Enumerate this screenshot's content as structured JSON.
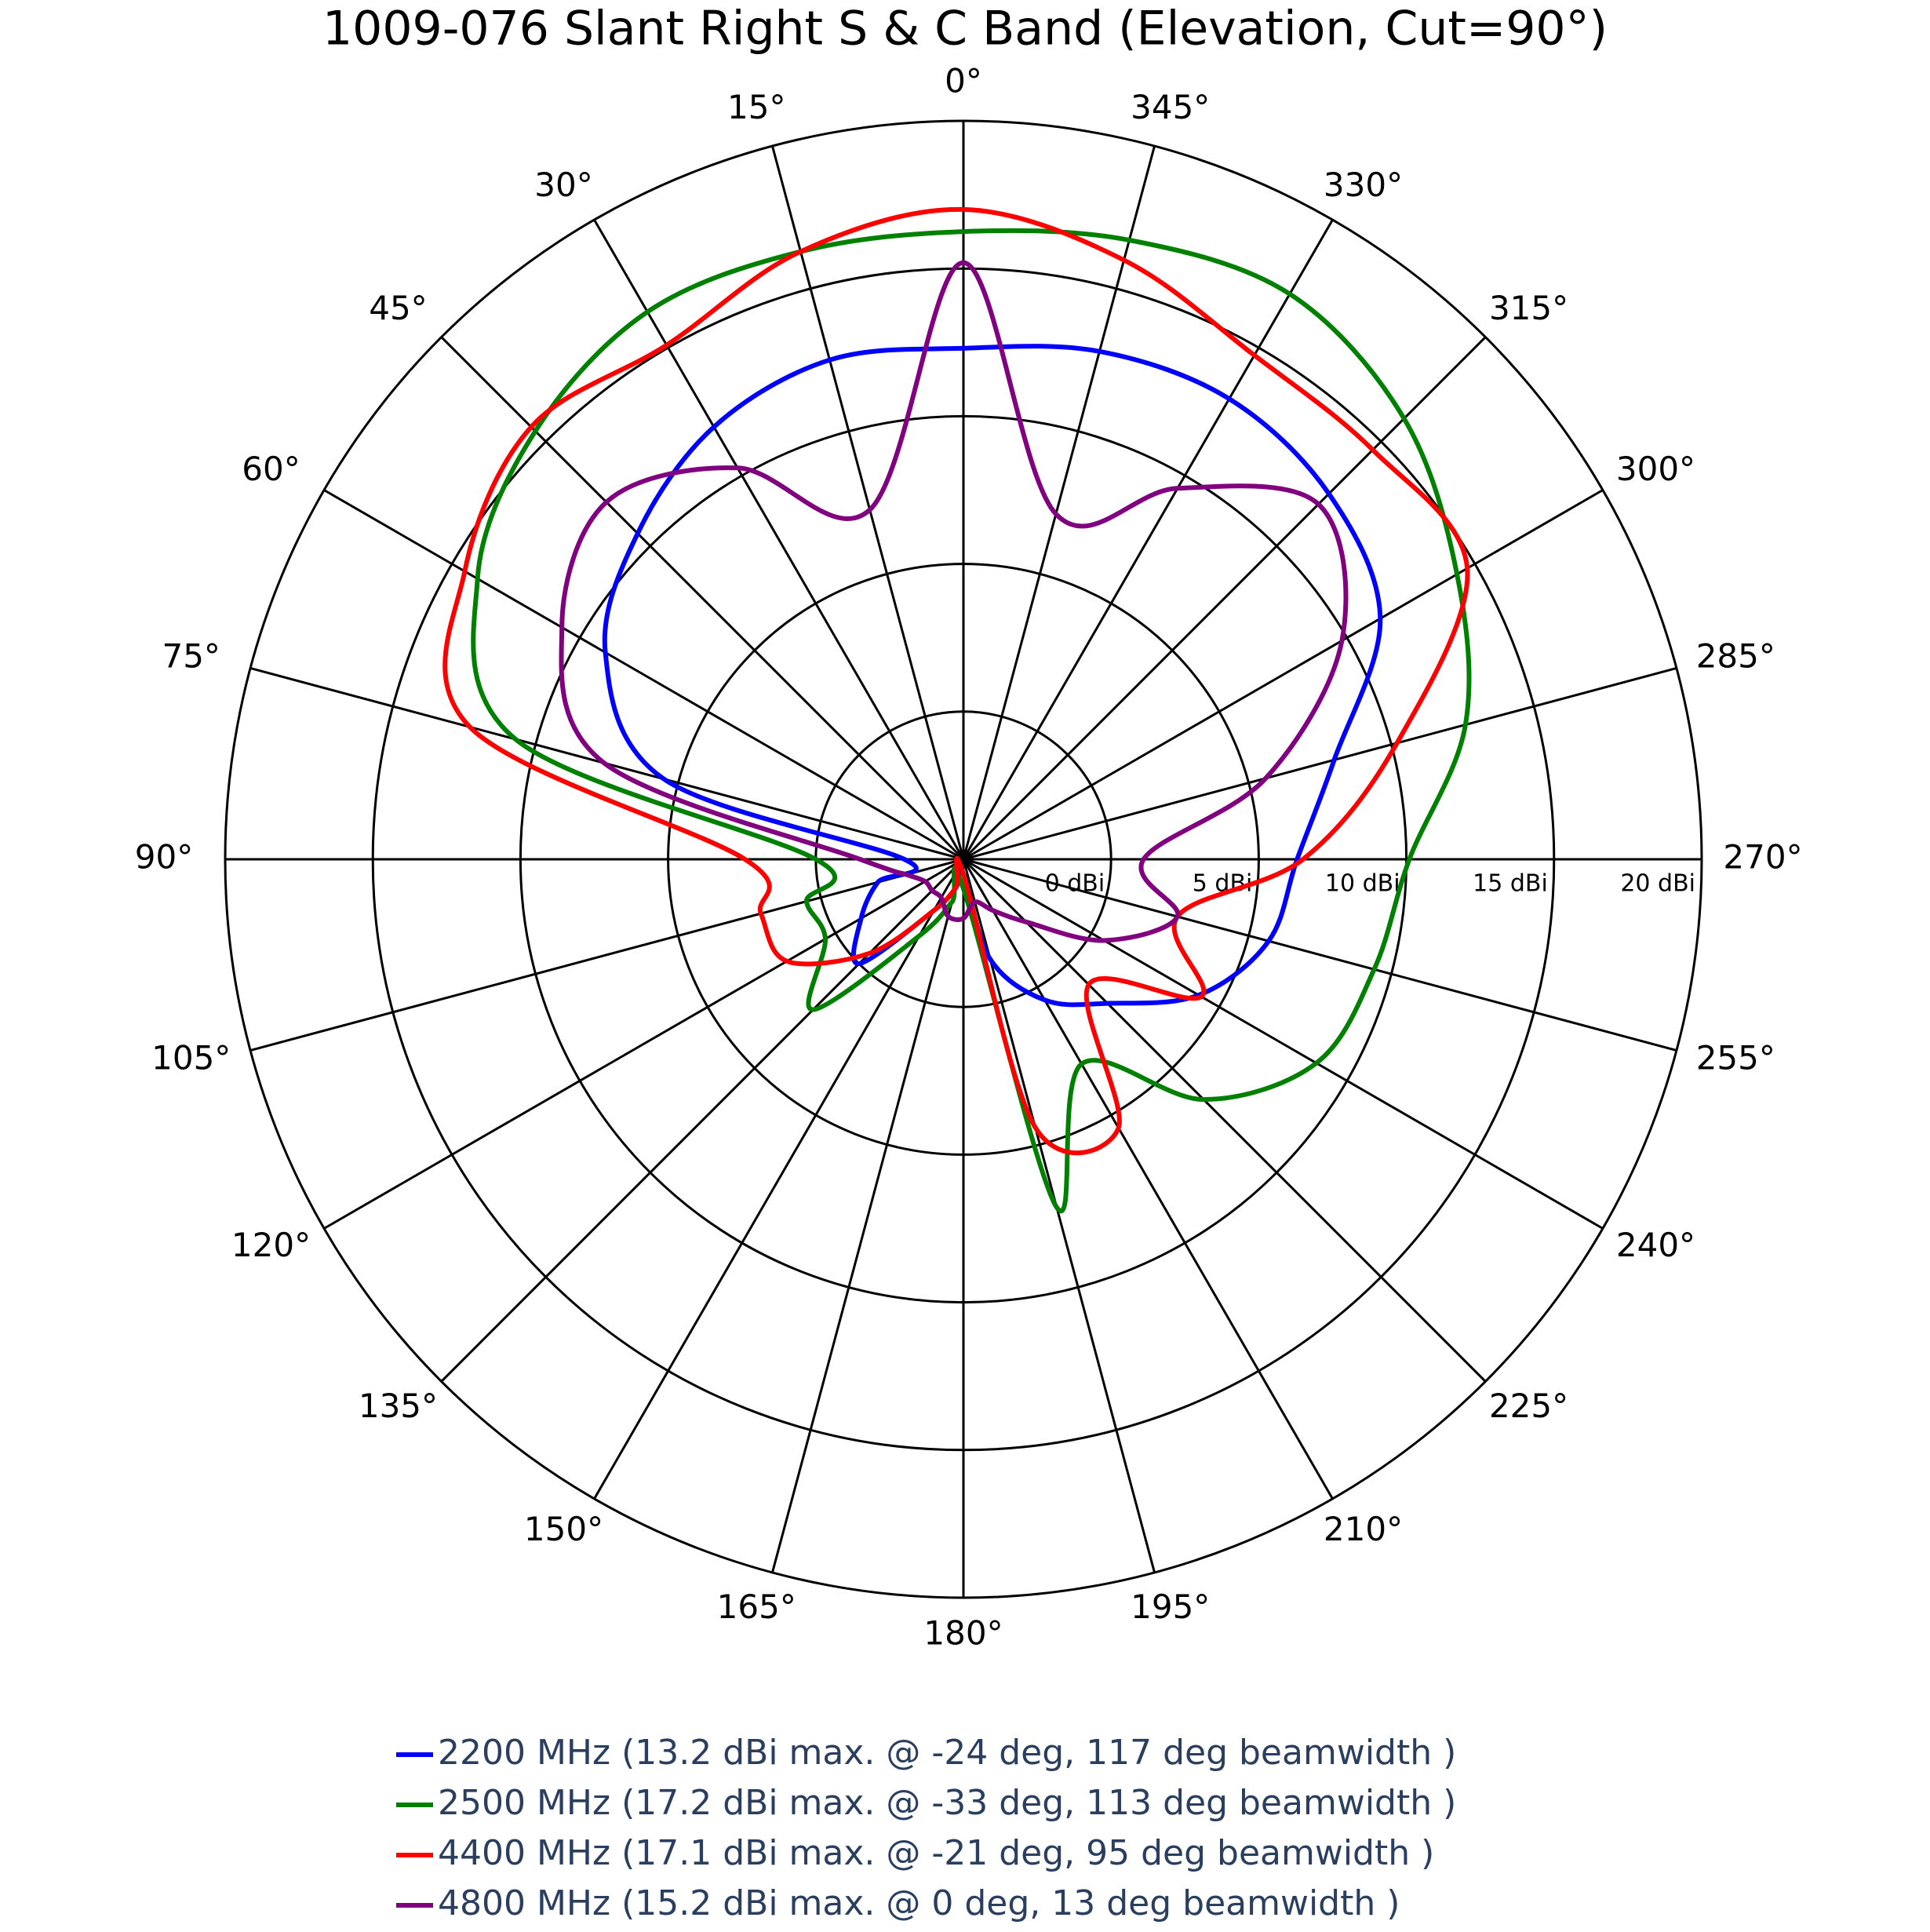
{
  "chart_data": {
    "type": "polar",
    "title": "1009-076 Slant Right S & C Band (Elevation, Cut=90°)",
    "direction": "counterclockwise",
    "rotation": 90,
    "theta": [
      0,
      15,
      30,
      45,
      60,
      75,
      90,
      105,
      120,
      135,
      150,
      165,
      180,
      195,
      210,
      225,
      240,
      255,
      270,
      285,
      300,
      315,
      330,
      345
    ],
    "thetaticks": [
      {
        "value": 0,
        "label": "0°"
      },
      {
        "value": 15,
        "label": "15°"
      },
      {
        "value": 30,
        "label": "30°"
      },
      {
        "value": 45,
        "label": "45°"
      },
      {
        "value": 60,
        "label": "60°"
      },
      {
        "value": 75,
        "label": "75°"
      },
      {
        "value": 90,
        "label": "90°"
      },
      {
        "value": 105,
        "label": "105°"
      },
      {
        "value": 120,
        "label": "120°"
      },
      {
        "value": 135,
        "label": "135°"
      },
      {
        "value": 150,
        "label": "150°"
      },
      {
        "value": 165,
        "label": "165°"
      },
      {
        "value": 180,
        "label": "180°"
      },
      {
        "value": 195,
        "label": "195°"
      },
      {
        "value": 210,
        "label": "210°"
      },
      {
        "value": 225,
        "label": "225°"
      },
      {
        "value": 240,
        "label": "240°"
      },
      {
        "value": 255,
        "label": "255°"
      },
      {
        "value": 270,
        "label": "270°"
      },
      {
        "value": 285,
        "label": "285°"
      },
      {
        "value": 300,
        "label": "300°"
      },
      {
        "value": 315,
        "label": "315°"
      },
      {
        "value": 330,
        "label": "330°"
      },
      {
        "value": 345,
        "label": "345°"
      }
    ],
    "rlim": [
      -5,
      20
    ],
    "rticks": [
      {
        "value": 0,
        "label": "0 dBi"
      },
      {
        "value": 5,
        "label": "5 dBi"
      },
      {
        "value": 10,
        "label": "10 dBi"
      },
      {
        "value": 15,
        "label": "15 dBi"
      },
      {
        "value": 20,
        "label": "20 dBi"
      }
    ],
    "series": [
      {
        "name": "2200 MHz (13.2 dBi max. @ -24 deg, 117 deg beamwidth )",
        "color": "#0000ff",
        "values": [
          12.3,
          12.5,
          11.9,
          10.6,
          9.0,
          5.5,
          -3,
          -2,
          -1,
          0,
          -3,
          -4,
          -4.5,
          -1.5,
          0.5,
          1.9,
          4.2,
          5.7,
          6.3,
          8.0,
          11.3,
          12.5,
          13.0,
          12.8
        ]
      },
      {
        "name": "2500 MHz (17.2 dBi max. @ -33 deg, 113 deg beamwidth )",
        "color": "#008000",
        "values": [
          16.25,
          16.3,
          16.4,
          15.5,
          14.0,
          10.7,
          0,
          0.5,
          0.4,
          2.2,
          -2,
          -3.5,
          -4,
          7.2,
          3,
          6.5,
          8.8,
          9.4,
          10.1,
          12.6,
          14.3,
          16.1,
          17.1,
          16.7
        ]
      },
      {
        "name": "4400 MHz (17.1 dBi max. @ -21 deg, 95 deg beamwidth )",
        "color": "#ff0000",
        "values": [
          17.0,
          16.3,
          15.1,
          15.7,
          14.5,
          12.3,
          2.4,
          2.1,
          1.9,
          -0.5,
          -3,
          -4,
          -4.5,
          4.4,
          5.5,
          1,
          4.3,
          2.5,
          6.5,
          10.2,
          14.7,
          14.6,
          14.7,
          16.0
        ]
      },
      {
        "name": "4800 MHz (15.2 dBi max. @ 0 deg, 13 deg beamwidth )",
        "color": "#800080",
        "values": [
          15.2,
          7.25,
          10.3,
          12.1,
          10.7,
          7.6,
          -1.5,
          -3,
          -3.5,
          -3.5,
          -3.5,
          -3,
          -3,
          -3.5,
          -3,
          -2,
          0.5,
          2.5,
          1.1,
          5.6,
          9.8,
          12.0,
          9.5,
          7.1
        ]
      }
    ]
  }
}
